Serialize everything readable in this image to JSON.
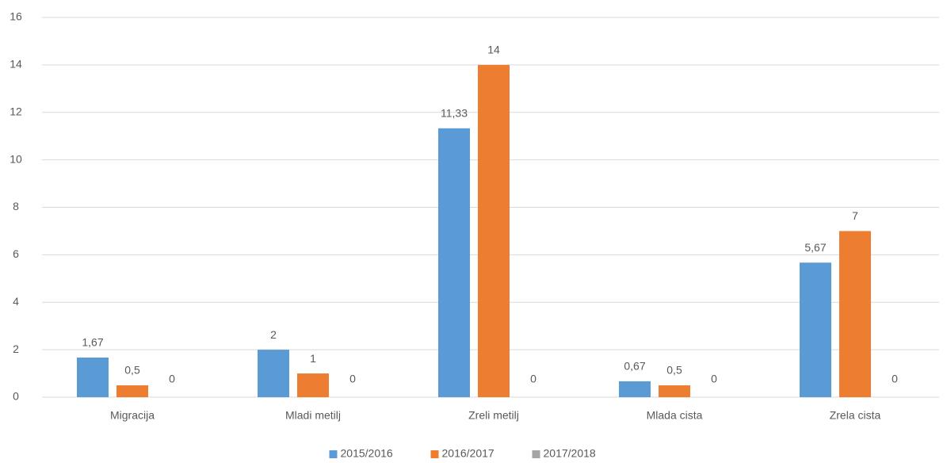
{
  "chart_data": {
    "type": "bar",
    "categories": [
      "Migracija",
      "Mladi metilj",
      "Zreli metilj",
      "Mlada cista",
      "Zrela cista"
    ],
    "series": [
      {
        "name": "2015/2016",
        "color": "#5b9bd5",
        "values": [
          1.67,
          2,
          11.33,
          0.67,
          5.67
        ],
        "value_labels": [
          "1,67",
          "2",
          "11,33",
          "0,67",
          "5,67"
        ]
      },
      {
        "name": "2016/2017",
        "color": "#ed7d31",
        "values": [
          0.5,
          1,
          14,
          0.5,
          7
        ],
        "value_labels": [
          "0,5",
          "1",
          "14",
          "0,5",
          "7"
        ]
      },
      {
        "name": "2017/2018",
        "color": "#a5a5a5",
        "values": [
          0,
          0,
          0,
          0,
          0
        ],
        "value_labels": [
          "0",
          "0",
          "0",
          "0",
          "0"
        ]
      }
    ],
    "ylim": [
      0,
      16
    ],
    "yticks": [
      0,
      2,
      4,
      6,
      8,
      10,
      12,
      14,
      16
    ],
    "grid": true,
    "legend": "bottom"
  }
}
